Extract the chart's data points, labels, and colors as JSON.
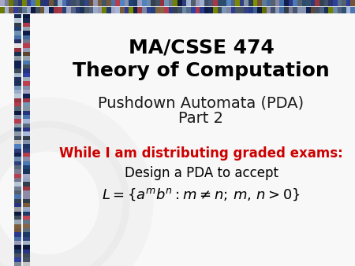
{
  "title_line1": "MA/CSSE 474",
  "title_line2": "Theory of Computation",
  "subtitle_line1": "Pushdown Automata (PDA)",
  "subtitle_line2": "Part 2",
  "red_line": "While I am distributing graded exams:",
  "body_line1": "Design a PDA to accept",
  "math_line": "$L = \\{a^m b^n : m \\neq n;\\, m,\\, n > 0\\}$",
  "slide_bg": "#f8f8f8",
  "title_color": "#000000",
  "subtitle_color": "#1a1a1a",
  "red_color": "#cc0000",
  "body_color": "#000000",
  "title_fontsize": 18,
  "subtitle_fontsize": 14,
  "red_fontsize": 12,
  "body_fontsize": 12,
  "math_fontsize": 13,
  "figw": 4.5,
  "figh": 3.38,
  "dpi": 100
}
